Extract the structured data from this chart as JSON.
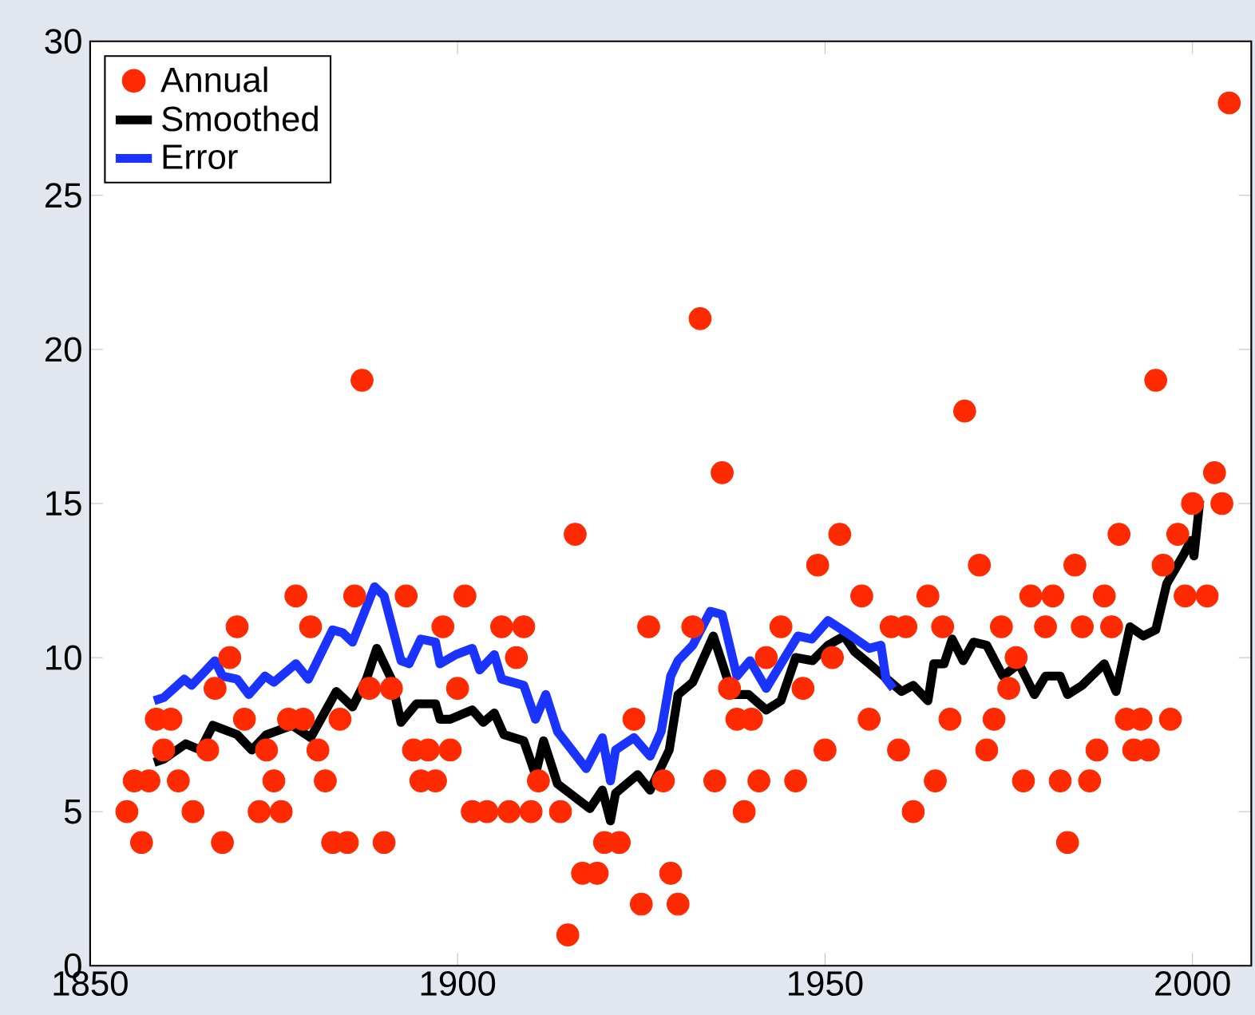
{
  "chart_data": {
    "type": "scatter",
    "xlim": [
      1850,
      2008
    ],
    "ylim": [
      0,
      30
    ],
    "xticks": [
      1850,
      1900,
      1950,
      2000
    ],
    "yticks": [
      0,
      5,
      10,
      15,
      20,
      25,
      30
    ],
    "legend": "top left",
    "marker": "circle",
    "series": [
      {
        "name": "Annual",
        "type": "scatter",
        "color": "#ff2a00",
        "x": [
          1855,
          1856,
          1857,
          1858,
          1859,
          1860,
          1861,
          1862,
          1864,
          1866,
          1867,
          1868,
          1869,
          1870,
          1871,
          1873,
          1874,
          1875,
          1876,
          1877,
          1878,
          1879,
          1880,
          1881,
          1882,
          1883,
          1884,
          1885,
          1886,
          1887,
          1888,
          1890,
          1891,
          1893,
          1894,
          1895,
          1896,
          1897,
          1898,
          1899,
          1900,
          1901,
          1902,
          1904,
          1906,
          1907,
          1908,
          1909,
          1910,
          1911,
          1914,
          1915,
          1916,
          1917,
          1919,
          1920,
          1922,
          1924,
          1925,
          1926,
          1928,
          1929,
          1930,
          1932,
          1933,
          1935,
          1936,
          1937,
          1938,
          1939,
          1940,
          1941,
          1942,
          1944,
          1946,
          1947,
          1949,
          1950,
          1951,
          1952,
          1955,
          1956,
          1959,
          1960,
          1961,
          1962,
          1964,
          1965,
          1966,
          1967,
          1969,
          1971,
          1972,
          1973,
          1974,
          1975,
          1976,
          1977,
          1978,
          1980,
          1981,
          1982,
          1983,
          1984,
          1985,
          1986,
          1987,
          1988,
          1989,
          1990,
          1991,
          1992,
          1993,
          1994,
          1995,
          1996,
          1997,
          1998,
          1999,
          2000,
          2002,
          2003,
          2004,
          2005
        ],
        "values": [
          5,
          6,
          4,
          6,
          8,
          7,
          8,
          6,
          5,
          7,
          9,
          4,
          10,
          11,
          8,
          5,
          7,
          6,
          5,
          8,
          12,
          8,
          11,
          7,
          6,
          4,
          8,
          4,
          12,
          19,
          9,
          4,
          9,
          12,
          7,
          6,
          7,
          6,
          11,
          7,
          9,
          12,
          5,
          5,
          11,
          5,
          10,
          11,
          5,
          6,
          5,
          1,
          14,
          3,
          3,
          4,
          4,
          8,
          2,
          11,
          6,
          3,
          2,
          11,
          21,
          6,
          16,
          9,
          8,
          5,
          8,
          6,
          10,
          11,
          6,
          9,
          13,
          7,
          10,
          14,
          12,
          8,
          11,
          7,
          11,
          5,
          12,
          6,
          11,
          8,
          18,
          13,
          7,
          8,
          11,
          9,
          10,
          6,
          12,
          11,
          12,
          6,
          4,
          13,
          11,
          6,
          7,
          12,
          11,
          14,
          8,
          7,
          8,
          7,
          19,
          13,
          8,
          14,
          12,
          15,
          12,
          16,
          15,
          28
        ]
      },
      {
        "name": "Smoothed",
        "type": "line",
        "marker": "none",
        "color": "#000000",
        "x": [
          1858.7,
          1860,
          1863,
          1865,
          1866.7,
          1870,
          1872,
          1874,
          1877.5,
          1880,
          1883.5,
          1885.7,
          1887.6,
          1889,
          1891,
          1892.3,
          1894.4,
          1897,
          1897.6,
          1899,
          1902,
          1903.5,
          1905,
          1906.3,
          1909,
          1910.6,
          1911.7,
          1913.6,
          1918,
          1919.7,
          1920.8,
          1921.5,
          1924.5,
          1926.2,
          1928.8,
          1930,
          1932,
          1934.8,
          1937.4,
          1939.6,
          1942,
          1944,
          1946,
          1948.3,
          1950.4,
          1952.6,
          1954,
          1956,
          1960.4,
          1962,
          1964,
          1964.8,
          1966.2,
          1967.3,
          1968.8,
          1970.2,
          1972,
          1974.2,
          1976.4,
          1978.5,
          1980,
          1982,
          1983,
          1985,
          1988,
          1989.6,
          1991.5,
          1993.3,
          1995,
          1996.5,
          1998.7,
          1999.8,
          2000.2,
          2001
        ],
        "values": [
          6.6,
          6.7,
          7.2,
          7.0,
          7.8,
          7.5,
          7.0,
          7.5,
          7.8,
          7.4,
          8.9,
          8.4,
          9.3,
          10.3,
          9.3,
          7.9,
          8.5,
          8.5,
          8.0,
          8.0,
          8.3,
          7.9,
          8.2,
          7.5,
          7.3,
          6.2,
          7.3,
          5.9,
          5.1,
          5.7,
          4.7,
          5.6,
          6.2,
          5.7,
          7.0,
          8.8,
          9.2,
          10.7,
          8.8,
          8.8,
          8.3,
          8.6,
          10.0,
          9.9,
          10.4,
          10.7,
          10.2,
          9.8,
          8.9,
          9.1,
          8.6,
          9.8,
          9.8,
          10.6,
          9.9,
          10.5,
          10.4,
          9.4,
          9.8,
          8.8,
          9.4,
          9.4,
          8.8,
          9.1,
          9.8,
          8.9,
          11.0,
          10.7,
          10.9,
          12.4,
          13.3,
          13.8,
          13.3,
          15.1
        ]
      },
      {
        "name": "Error",
        "type": "line",
        "marker": "none",
        "color": "#1a33ff",
        "x": [
          1858.7,
          1860,
          1862.8,
          1863.8,
          1867,
          1868,
          1870,
          1871.6,
          1873.8,
          1875,
          1878,
          1879.7,
          1883,
          1884.4,
          1885.7,
          1888.7,
          1890,
          1892.3,
          1893.4,
          1895,
          1897,
          1897.6,
          1899.8,
          1902,
          1903,
          1905,
          1906,
          1909,
          1910.6,
          1912,
          1913.6,
          1917.5,
          1919.7,
          1920.8,
          1921.5,
          1924,
          1926.2,
          1927.7,
          1929,
          1930,
          1932,
          1934.4,
          1936,
          1938,
          1939.8,
          1942,
          1944,
          1946.3,
          1948.2,
          1950.4,
          1953,
          1956,
          1957.6,
          1958.3,
          1959.3
        ],
        "values": [
          8.6,
          8.7,
          9.3,
          9.1,
          9.9,
          9.4,
          9.3,
          8.8,
          9.4,
          9.2,
          9.8,
          9.3,
          10.9,
          10.8,
          10.5,
          12.3,
          12.0,
          9.9,
          9.8,
          10.6,
          10.5,
          9.8,
          10.1,
          10.3,
          9.6,
          10.1,
          9.3,
          9.1,
          8.0,
          8.8,
          7.6,
          6.4,
          7.4,
          6.0,
          7.0,
          7.4,
          6.8,
          7.6,
          9.4,
          9.9,
          10.4,
          11.5,
          11.4,
          9.4,
          9.9,
          9.0,
          9.8,
          10.7,
          10.6,
          11.2,
          10.8,
          10.3,
          10.4,
          9.3,
          9.0
        ]
      }
    ]
  }
}
